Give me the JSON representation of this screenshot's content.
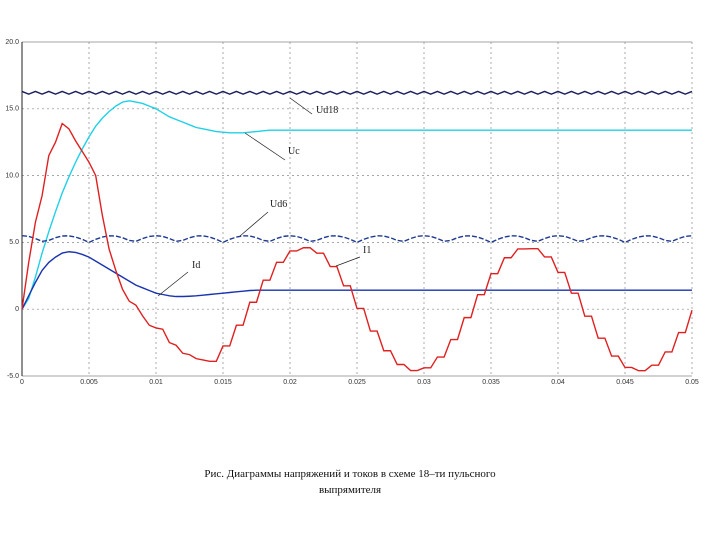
{
  "chart_data": {
    "type": "line",
    "caption": "Рис. Диаграммы напряжений и токов в схеме 18–ти пульсного выпрямителя",
    "x": [
      0,
      0.0005,
      0.001,
      0.0015,
      0.002,
      0.0025,
      0.003,
      0.0035,
      0.004,
      0.0045,
      0.005,
      0.0055,
      0.006,
      0.0065,
      0.007,
      0.0075,
      0.008,
      0.0085,
      0.009,
      0.0095,
      0.01,
      0.0105,
      0.011,
      0.0115,
      0.012,
      0.0125,
      0.013,
      0.0135,
      0.014,
      0.0145,
      0.015,
      0.0155,
      0.016,
      0.0165,
      0.017,
      0.0175,
      0.018,
      0.0185,
      0.019,
      0.0195,
      0.02,
      0.0205,
      0.021,
      0.0215,
      0.022,
      0.0225,
      0.023,
      0.0235,
      0.024,
      0.0245,
      0.025,
      0.0255,
      0.026,
      0.0265,
      0.027,
      0.0275,
      0.028,
      0.0285,
      0.029,
      0.0295,
      0.03,
      0.0305,
      0.031,
      0.0315,
      0.032,
      0.0325,
      0.033,
      0.0335,
      0.034,
      0.0345,
      0.035,
      0.0355,
      0.036,
      0.0365,
      0.037,
      0.0375,
      0.038,
      0.0385,
      0.039,
      0.0395,
      0.04,
      0.0405,
      0.041,
      0.0415,
      0.042,
      0.0425,
      0.043,
      0.0435,
      0.044,
      0.0445,
      0.045,
      0.0455,
      0.046,
      0.0465,
      0.047,
      0.0475,
      0.048,
      0.0485,
      0.049,
      0.0495,
      0.05
    ],
    "series": [
      {
        "name": "Ud18",
        "color": "#1b1f5e",
        "values": [
          16.3,
          16.1,
          16.3,
          16.1,
          16.3,
          16.1,
          16.3,
          16.1,
          16.3,
          16.1,
          16.3,
          16.1,
          16.3,
          16.1,
          16.3,
          16.1,
          16.3,
          16.1,
          16.3,
          16.1,
          16.3,
          16.1,
          16.3,
          16.1,
          16.3,
          16.1,
          16.3,
          16.1,
          16.3,
          16.1,
          16.3,
          16.1,
          16.3,
          16.1,
          16.3,
          16.1,
          16.3,
          16.1,
          16.3,
          16.1,
          16.3,
          16.1,
          16.3,
          16.1,
          16.3,
          16.1,
          16.3,
          16.1,
          16.3,
          16.1,
          16.3,
          16.1,
          16.3,
          16.1,
          16.3,
          16.1,
          16.3,
          16.1,
          16.3,
          16.1,
          16.3,
          16.1,
          16.3,
          16.1,
          16.3,
          16.1,
          16.3,
          16.1,
          16.3,
          16.1,
          16.3,
          16.1,
          16.3,
          16.1,
          16.3,
          16.1,
          16.3,
          16.1,
          16.3,
          16.1,
          16.3,
          16.1,
          16.3,
          16.1,
          16.3,
          16.1,
          16.3,
          16.1,
          16.3,
          16.1,
          16.3,
          16.1,
          16.3,
          16.1,
          16.3,
          16.1,
          16.3,
          16.1,
          16.3,
          16.1,
          16.3
        ]
      },
      {
        "name": "Uc",
        "color": "#20d0e8",
        "values": [
          0,
          0.8,
          2.4,
          4.2,
          5.8,
          7.3,
          8.7,
          9.9,
          11.0,
          12.0,
          12.9,
          13.7,
          14.3,
          14.8,
          15.2,
          15.5,
          15.6,
          15.5,
          15.4,
          15.2,
          15.0,
          14.7,
          14.4,
          14.2,
          14.0,
          13.8,
          13.6,
          13.5,
          13.4,
          13.3,
          13.25,
          13.2,
          13.2,
          13.2,
          13.25,
          13.3,
          13.35,
          13.4,
          13.4,
          13.4,
          13.4,
          13.4,
          13.4,
          13.4,
          13.4,
          13.4,
          13.4,
          13.4,
          13.4,
          13.4,
          13.4,
          13.4,
          13.4,
          13.4,
          13.4,
          13.4,
          13.4,
          13.4,
          13.4,
          13.4,
          13.4,
          13.4,
          13.4,
          13.4,
          13.4,
          13.4,
          13.4,
          13.4,
          13.4,
          13.4,
          13.4,
          13.4,
          13.4,
          13.4,
          13.4,
          13.4,
          13.4,
          13.4,
          13.4,
          13.4,
          13.4,
          13.4,
          13.4,
          13.4,
          13.4,
          13.4,
          13.4,
          13.4,
          13.4,
          13.4,
          13.4,
          13.4,
          13.4,
          13.4,
          13.4,
          13.4,
          13.4,
          13.4,
          13.4,
          13.4,
          13.4
        ]
      },
      {
        "name": "Ud6",
        "color": "#1f3a93",
        "dash": true,
        "values": [
          5.5,
          5.45,
          5.29,
          5.08,
          5.15,
          5.35,
          5.48,
          5.49,
          5.4,
          5.23,
          5.0,
          5.23,
          5.4,
          5.49,
          5.48,
          5.35,
          5.15,
          5.08,
          5.29,
          5.45,
          5.5,
          5.45,
          5.29,
          5.08,
          5.15,
          5.35,
          5.48,
          5.49,
          5.4,
          5.23,
          5.0,
          5.23,
          5.4,
          5.49,
          5.48,
          5.35,
          5.15,
          5.08,
          5.29,
          5.45,
          5.5,
          5.45,
          5.29,
          5.08,
          5.15,
          5.35,
          5.48,
          5.49,
          5.4,
          5.23,
          5.0,
          5.23,
          5.4,
          5.49,
          5.48,
          5.35,
          5.15,
          5.08,
          5.29,
          5.45,
          5.5,
          5.45,
          5.29,
          5.08,
          5.15,
          5.35,
          5.48,
          5.49,
          5.4,
          5.23,
          5.0,
          5.23,
          5.4,
          5.49,
          5.48,
          5.35,
          5.15,
          5.08,
          5.29,
          5.45,
          5.5,
          5.45,
          5.29,
          5.08,
          5.15,
          5.35,
          5.48,
          5.49,
          5.4,
          5.23,
          5.0,
          5.23,
          5.4,
          5.49,
          5.48,
          5.35,
          5.15,
          5.08,
          5.29,
          5.45,
          5.5
        ]
      },
      {
        "name": "Id",
        "color": "#1a33b0",
        "values": [
          0,
          1.0,
          2.0,
          2.9,
          3.5,
          3.9,
          4.2,
          4.3,
          4.25,
          4.1,
          3.9,
          3.6,
          3.3,
          3.0,
          2.7,
          2.4,
          2.1,
          1.8,
          1.6,
          1.4,
          1.2,
          1.1,
          1.0,
          0.95,
          0.95,
          0.97,
          1.0,
          1.05,
          1.1,
          1.15,
          1.2,
          1.25,
          1.3,
          1.35,
          1.4,
          1.42,
          1.42,
          1.42,
          1.42,
          1.42,
          1.42,
          1.42,
          1.42,
          1.42,
          1.42,
          1.42,
          1.42,
          1.42,
          1.42,
          1.42,
          1.42,
          1.42,
          1.42,
          1.42,
          1.42,
          1.42,
          1.42,
          1.42,
          1.42,
          1.42,
          1.42,
          1.42,
          1.42,
          1.42,
          1.42,
          1.42,
          1.42,
          1.42,
          1.42,
          1.42,
          1.42,
          1.42,
          1.42,
          1.42,
          1.42,
          1.42,
          1.42,
          1.42,
          1.42,
          1.42,
          1.42,
          1.42,
          1.42,
          1.42,
          1.42,
          1.42,
          1.42,
          1.42,
          1.42,
          1.42,
          1.42,
          1.42,
          1.42,
          1.42,
          1.42,
          1.42,
          1.42,
          1.42,
          1.42,
          1.42,
          1.42
        ]
      },
      {
        "name": "I1",
        "color": "#e02020",
        "values": [
          0,
          3.5,
          6.5,
          8.5,
          11.5,
          12.5,
          13.9,
          13.5,
          12.6,
          11.8,
          11.0,
          10.0,
          7.0,
          4.5,
          2.9,
          1.5,
          0.6,
          0.3,
          -0.5,
          -1.2,
          -1.4,
          -1.5,
          -2.5,
          -2.7,
          -3.3,
          -3.4,
          -3.7,
          -3.8,
          -3.9,
          -3.9,
          -2.75,
          -2.75,
          -1.2,
          -1.2,
          0.52,
          0.52,
          2.17,
          2.17,
          3.51,
          3.51,
          4.36,
          4.36,
          4.6,
          4.6,
          4.19,
          4.19,
          3.19,
          3.19,
          1.75,
          1.75,
          0.06,
          0.06,
          -1.64,
          -1.64,
          -3.11,
          -3.11,
          -4.14,
          -4.14,
          -4.59,
          -4.59,
          -4.39,
          -4.39,
          -3.58,
          -3.58,
          -2.27,
          -2.27,
          -0.63,
          -0.63,
          1.09,
          1.09,
          2.66,
          2.66,
          3.85,
          3.85,
          4.51,
          4.51,
          4.53,
          4.53,
          3.91,
          3.91,
          2.75,
          2.75,
          1.2,
          1.2,
          -0.52,
          -0.52,
          -2.17,
          -2.17,
          -3.51,
          -3.51,
          -4.36,
          -4.36,
          -4.6,
          -4.6,
          -4.19,
          -4.19,
          -3.2,
          -3.2,
          -1.75,
          -1.75,
          -0.07
        ]
      }
    ],
    "xlim": [
      0,
      0.05
    ],
    "xticks": [
      0,
      0.005,
      0.01,
      0.015,
      0.02,
      0.025,
      0.03,
      0.035,
      0.04,
      0.045,
      0.05
    ],
    "ylim": [
      -5,
      20
    ],
    "yticks": [
      {
        "value": -5,
        "label": "-5.0"
      },
      0,
      {
        "value": 5,
        "label": "5.0"
      },
      {
        "value": 10,
        "label": "10.0"
      },
      {
        "value": 15,
        "label": "15.0"
      },
      {
        "value": 20,
        "label": "20.0"
      }
    ],
    "grid": true
  }
}
